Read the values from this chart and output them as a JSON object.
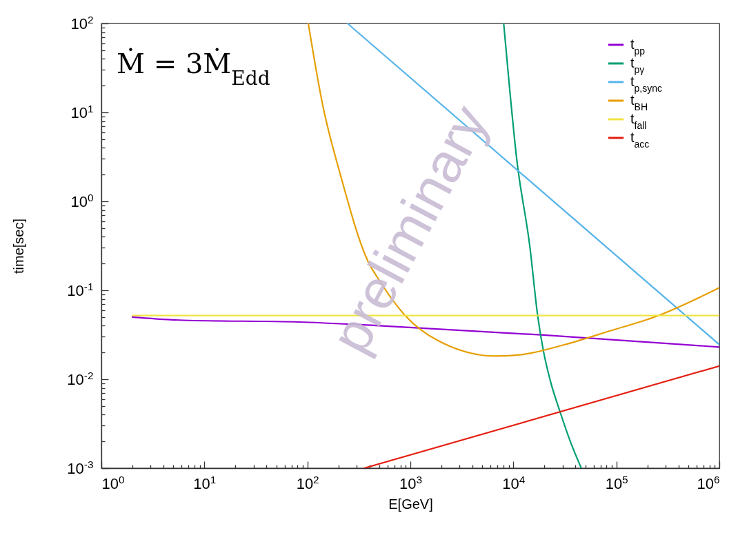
{
  "chart_data": {
    "type": "line",
    "title": "Ṁ = 3Ṁ$_{Edd}$",
    "xlabel": "E[GeV]",
    "ylabel": "time[sec]",
    "log": "xy",
    "legend": "top right",
    "grid": false,
    "marker": "none",
    "line_style": "solid",
    "annotations": [
      "preliminary"
    ],
    "xlim": [
      1,
      1000000
    ],
    "ylim": [
      0.001,
      100
    ],
    "xticks": [
      {
        "value": 1,
        "label": "10$^{0}$"
      },
      {
        "value": 10,
        "label": "10$^{1}$"
      },
      {
        "value": 100,
        "label": "10$^{2}$"
      },
      {
        "value": 1000,
        "label": "10$^{3}$"
      },
      {
        "value": 10000,
        "label": "10$^{4}$"
      },
      {
        "value": 100000,
        "label": "10$^{5}$"
      },
      {
        "value": 1000000,
        "label": "10$^{6}$"
      },
      {
        "value": 2,
        "label": null
      },
      {
        "value": 3,
        "label": null
      },
      {
        "value": 4,
        "label": null
      },
      {
        "value": 5,
        "label": null
      },
      {
        "value": 6,
        "label": null
      },
      {
        "value": 7,
        "label": null
      },
      {
        "value": 8,
        "label": null
      },
      {
        "value": 9,
        "label": null
      },
      {
        "value": 20,
        "label": null
      },
      {
        "value": 30,
        "label": null
      },
      {
        "value": 40,
        "label": null
      },
      {
        "value": 50,
        "label": null
      },
      {
        "value": 60,
        "label": null
      },
      {
        "value": 70,
        "label": null
      },
      {
        "value": 80,
        "label": null
      },
      {
        "value": 90,
        "label": null
      },
      {
        "value": 200,
        "label": null
      },
      {
        "value": 300,
        "label": null
      },
      {
        "value": 400,
        "label": null
      },
      {
        "value": 500,
        "label": null
      },
      {
        "value": 600,
        "label": null
      },
      {
        "value": 700,
        "label": null
      },
      {
        "value": 800,
        "label": null
      },
      {
        "value": 900,
        "label": null
      },
      {
        "value": 2000,
        "label": null
      },
      {
        "value": 3000,
        "label": null
      },
      {
        "value": 4000,
        "label": null
      },
      {
        "value": 5000,
        "label": null
      },
      {
        "value": 6000,
        "label": null
      },
      {
        "value": 7000,
        "label": null
      },
      {
        "value": 8000,
        "label": null
      },
      {
        "value": 9000,
        "label": null
      },
      {
        "value": 20000,
        "label": null
      },
      {
        "value": 30000,
        "label": null
      },
      {
        "value": 40000,
        "label": null
      },
      {
        "value": 50000,
        "label": null
      },
      {
        "value": 60000,
        "label": null
      },
      {
        "value": 70000,
        "label": null
      },
      {
        "value": 80000,
        "label": null
      },
      {
        "value": 90000,
        "label": null
      },
      {
        "value": 200000,
        "label": null
      },
      {
        "value": 300000,
        "label": null
      },
      {
        "value": 400000,
        "label": null
      },
      {
        "value": 500000,
        "label": null
      },
      {
        "value": 600000,
        "label": null
      },
      {
        "value": 700000,
        "label": null
      },
      {
        "value": 800000,
        "label": null
      },
      {
        "value": 900000,
        "label": null
      }
    ],
    "yticks": [
      {
        "value": 0.001,
        "label": "10$^{-3}$"
      },
      {
        "value": 0.01,
        "label": "10$^{-2}$"
      },
      {
        "value": 0.1,
        "label": "10$^{-1}$"
      },
      {
        "value": 1,
        "label": "10$^{0}$"
      },
      {
        "value": 10,
        "label": "10$^{1}$"
      },
      {
        "value": 100,
        "label": "10$^{2}$"
      },
      {
        "value": 0.002,
        "label": null
      },
      {
        "value": 0.003,
        "label": null
      },
      {
        "value": 0.004,
        "label": null
      },
      {
        "value": 0.005,
        "label": null
      },
      {
        "value": 0.006,
        "label": null
      },
      {
        "value": 0.007,
        "label": null
      },
      {
        "value": 0.008,
        "label": null
      },
      {
        "value": 0.009,
        "label": null
      },
      {
        "value": 0.02,
        "label": null
      },
      {
        "value": 0.03,
        "label": null
      },
      {
        "value": 0.04,
        "label": null
      },
      {
        "value": 0.05,
        "label": null
      },
      {
        "value": 0.06,
        "label": null
      },
      {
        "value": 0.07,
        "label": null
      },
      {
        "value": 0.08,
        "label": null
      },
      {
        "value": 0.09,
        "label": null
      },
      {
        "value": 0.2,
        "label": null
      },
      {
        "value": 0.3,
        "label": null
      },
      {
        "value": 0.4,
        "label": null
      },
      {
        "value": 0.5,
        "label": null
      },
      {
        "value": 0.6,
        "label": null
      },
      {
        "value": 0.7,
        "label": null
      },
      {
        "value": 0.8,
        "label": null
      },
      {
        "value": 0.9,
        "label": null
      },
      {
        "value": 2,
        "label": null
      },
      {
        "value": 3,
        "label": null
      },
      {
        "value": 4,
        "label": null
      },
      {
        "value": 5,
        "label": null
      },
      {
        "value": 6,
        "label": null
      },
      {
        "value": 7,
        "label": null
      },
      {
        "value": 8,
        "label": null
      },
      {
        "value": 9,
        "label": null
      },
      {
        "value": 20,
        "label": null
      },
      {
        "value": 30,
        "label": null
      },
      {
        "value": 40,
        "label": null
      },
      {
        "value": 50,
        "label": null
      },
      {
        "value": 60,
        "label": null
      },
      {
        "value": 70,
        "label": null
      },
      {
        "value": 80,
        "label": null
      },
      {
        "value": 90,
        "label": null
      }
    ],
    "series": [
      {
        "name": "t$_{pp}$",
        "color": "#9400d3",
        "x": [
          2,
          6.3,
          83,
          500,
          18600,
          1000000
        ],
        "values": [
          0.05,
          0.046,
          0.044,
          0.04,
          0.0315,
          0.023
        ]
      },
      {
        "name": "t$_{pγ}$",
        "color": "#009e73",
        "x": [
          8050,
          9100,
          10700,
          14500,
          17200,
          19700,
          22900,
          28200,
          36300,
          45700
        ],
        "values": [
          100,
          21,
          3.2,
          0.3,
          0.052,
          0.02,
          0.0095,
          0.0044,
          0.0019,
          0.001
        ]
      },
      {
        "name": "t$_{p,sync}$",
        "color": "#56b4e9",
        "x": [
          245,
          1000000
        ],
        "values": [
          100,
          0.0245
        ]
      },
      {
        "name": "t$_{BH}$",
        "color": "#e69f00",
        "x": [
          102,
          141,
          209,
          389,
          500,
          891,
          1820,
          6760,
          12300,
          31600,
          87000,
          245000,
          1000000
        ],
        "values": [
          100,
          12,
          2,
          0.21,
          0.129,
          0.052,
          0.0275,
          0.0182,
          0.019,
          0.0245,
          0.035,
          0.051,
          0.107
        ]
      },
      {
        "name": "t$_{fall}$",
        "color": "#f0e442",
        "x": [
          2,
          1000000
        ],
        "values": [
          0.052,
          0.052
        ]
      },
      {
        "name": "t$_{acc}$",
        "color": "#e51e10",
        "x": [
          355,
          1000000
        ],
        "values": [
          0.001,
          0.0141
        ]
      }
    ]
  }
}
